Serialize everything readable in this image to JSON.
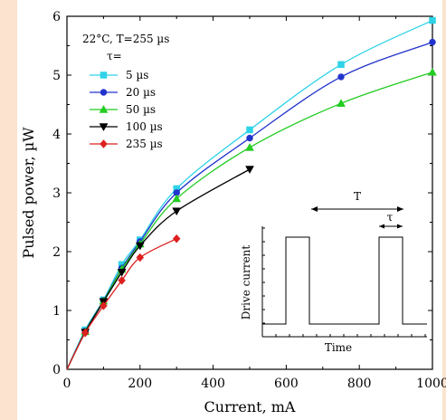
{
  "chart_data": {
    "type": "line",
    "xlabel": "Current, mA",
    "ylabel": "Pulsed power, µW",
    "xlim": [
      0,
      1000
    ],
    "ylim": [
      0,
      6
    ],
    "xticks": [
      "0",
      "200",
      "400",
      "600",
      "800",
      "1000"
    ],
    "yticks": [
      "0",
      "1",
      "2",
      "3",
      "4",
      "5",
      "6"
    ],
    "grid": false,
    "legend_position": "top-left",
    "annotation_line1": "22°C, T=255 µs",
    "annotation_line2": "τ=",
    "series": [
      {
        "name": "5 µs",
        "color": "#2fd3e8",
        "marker": "square",
        "x": [
          0,
          50,
          100,
          150,
          200,
          300,
          500,
          750,
          1000
        ],
        "y": [
          0,
          0.67,
          1.18,
          1.78,
          2.2,
          3.07,
          4.07,
          5.18,
          5.93
        ]
      },
      {
        "name": "20 µs",
        "color": "#2233cc",
        "marker": "circle",
        "x": [
          0,
          50,
          100,
          150,
          200,
          300,
          500,
          750,
          1000
        ],
        "y": [
          0,
          0.65,
          1.17,
          1.72,
          2.17,
          3.0,
          3.93,
          4.97,
          5.56
        ]
      },
      {
        "name": "50 µs",
        "color": "#22cc22",
        "marker": "triangle-up",
        "x": [
          0,
          50,
          100,
          150,
          200,
          300,
          500,
          750,
          1000
        ],
        "y": [
          0,
          0.64,
          1.16,
          1.7,
          2.13,
          2.9,
          3.77,
          4.52,
          5.05
        ]
      },
      {
        "name": "100 µs",
        "color": "#000000",
        "marker": "triangle-down",
        "x": [
          0,
          50,
          100,
          150,
          200,
          300,
          500
        ],
        "y": [
          0,
          0.63,
          1.15,
          1.65,
          2.1,
          2.69,
          3.4
        ]
      },
      {
        "name": "235 µs",
        "color": "#dd2020",
        "marker": "diamond",
        "x": [
          0,
          50,
          100,
          150,
          200,
          300
        ],
        "y": [
          0,
          0.62,
          1.08,
          1.51,
          1.9,
          2.22
        ]
      }
    ],
    "inset": {
      "ylabel": "Drive current",
      "xlabel": "Time",
      "period_label": "T",
      "pulse_label": "τ"
    }
  }
}
